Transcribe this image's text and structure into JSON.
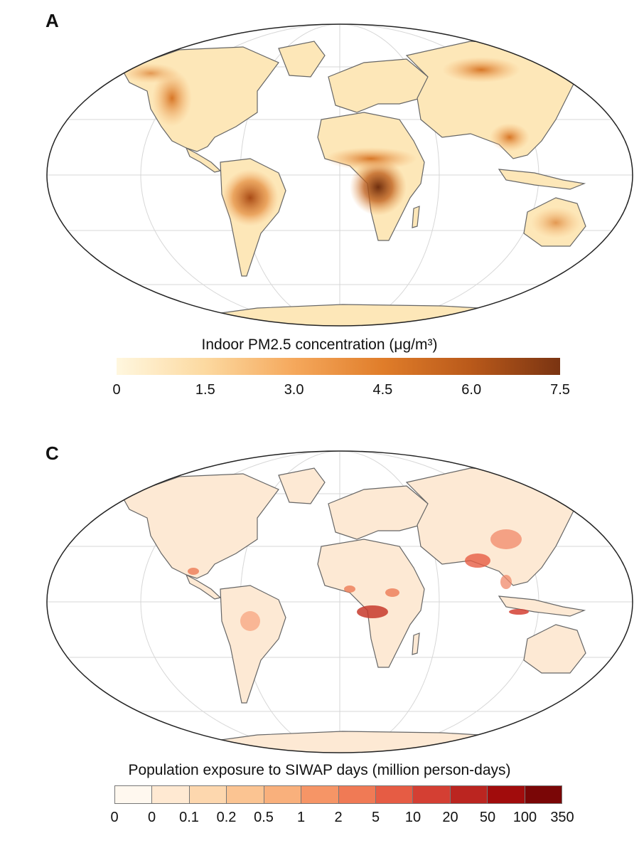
{
  "panel_a": {
    "letter": "A",
    "colorbar": {
      "title": "Indoor PM2.5 concentration (μg/m³)",
      "ticks": [
        "0",
        "1.5",
        "3.0",
        "4.5",
        "6.0",
        "7.5"
      ],
      "min": 0,
      "max": 7.5,
      "colors": [
        "#fff7df",
        "#fcd9a0",
        "#f5a85c",
        "#e07d2a",
        "#b9591a",
        "#7a3412"
      ]
    },
    "hotspots": [
      {
        "region": "central-africa",
        "level": 7.2
      },
      {
        "region": "sahel",
        "level": 4.5
      },
      {
        "region": "south-america-central",
        "level": 5.5
      },
      {
        "region": "amazon",
        "level": 4.0
      },
      {
        "region": "north-america-west",
        "level": 3.2
      },
      {
        "region": "siberia",
        "level": 3.3
      },
      {
        "region": "southeast-asia",
        "level": 4.0
      },
      {
        "region": "australia",
        "level": 2.5
      }
    ]
  },
  "panel_c": {
    "letter": "C",
    "colorbar": {
      "title": "Population exposure to SIWAP days (million person-days)",
      "ticks": [
        "0",
        "0",
        "0.1",
        "0.2",
        "0.5",
        "1",
        "2",
        "5",
        "10",
        "20",
        "50",
        "100",
        "350"
      ],
      "colors": [
        "#fff8ef",
        "#ffe9d2",
        "#fdd7ae",
        "#fbc492",
        "#f9b07c",
        "#f69566",
        "#f07a55",
        "#e65c44",
        "#d43f33",
        "#bb2520",
        "#a10c0c",
        "#7a0606"
      ]
    },
    "hotspots": [
      {
        "region": "central-africa",
        "bin": 9
      },
      {
        "region": "india",
        "bin": 7
      },
      {
        "region": "china",
        "bin": 6
      },
      {
        "region": "java",
        "bin": 8
      },
      {
        "region": "mexico",
        "bin": 6
      },
      {
        "region": "west-africa",
        "bin": 6
      },
      {
        "region": "east-africa",
        "bin": 6
      },
      {
        "region": "brazil",
        "bin": 5
      }
    ]
  }
}
